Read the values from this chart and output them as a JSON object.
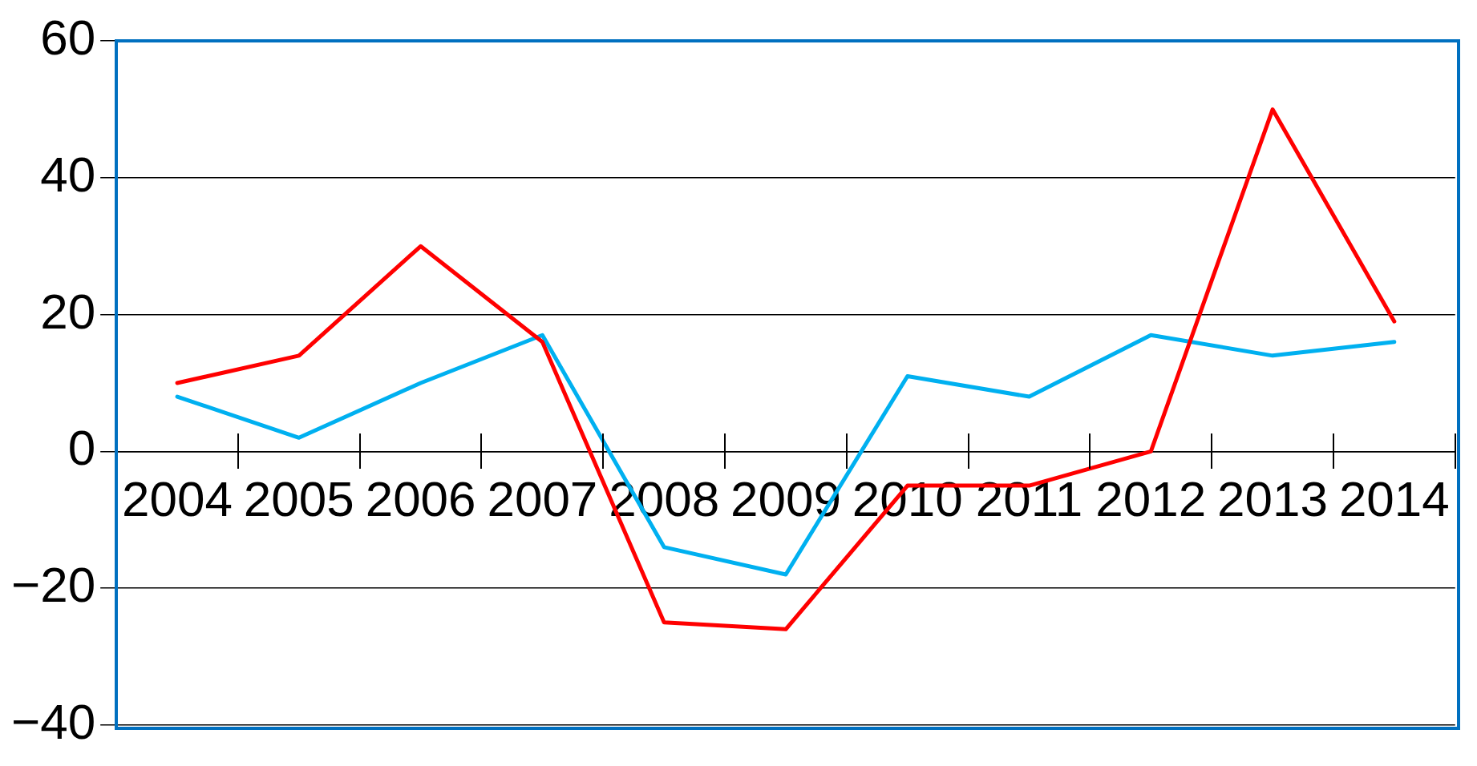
{
  "chart_data": {
    "type": "line",
    "categories": [
      "2004",
      "2005",
      "2006",
      "2007",
      "2008",
      "2009",
      "2010",
      "2011",
      "2012",
      "2013",
      "2014"
    ],
    "series": [
      {
        "color": "#ff0000",
        "values": [
          10,
          14,
          30,
          16,
          -25,
          -26,
          -5,
          -5,
          0,
          50,
          19
        ]
      },
      {
        "color": "#00b0f0",
        "values": [
          8,
          2,
          10,
          17,
          -14,
          -18,
          11,
          8,
          17,
          14,
          16
        ]
      }
    ],
    "ylim": [
      -40,
      60
    ],
    "yticks": [
      -40,
      -20,
      0,
      20,
      40,
      60
    ],
    "grid": "y",
    "legend": false,
    "marker": "none",
    "line_style": "solid"
  }
}
